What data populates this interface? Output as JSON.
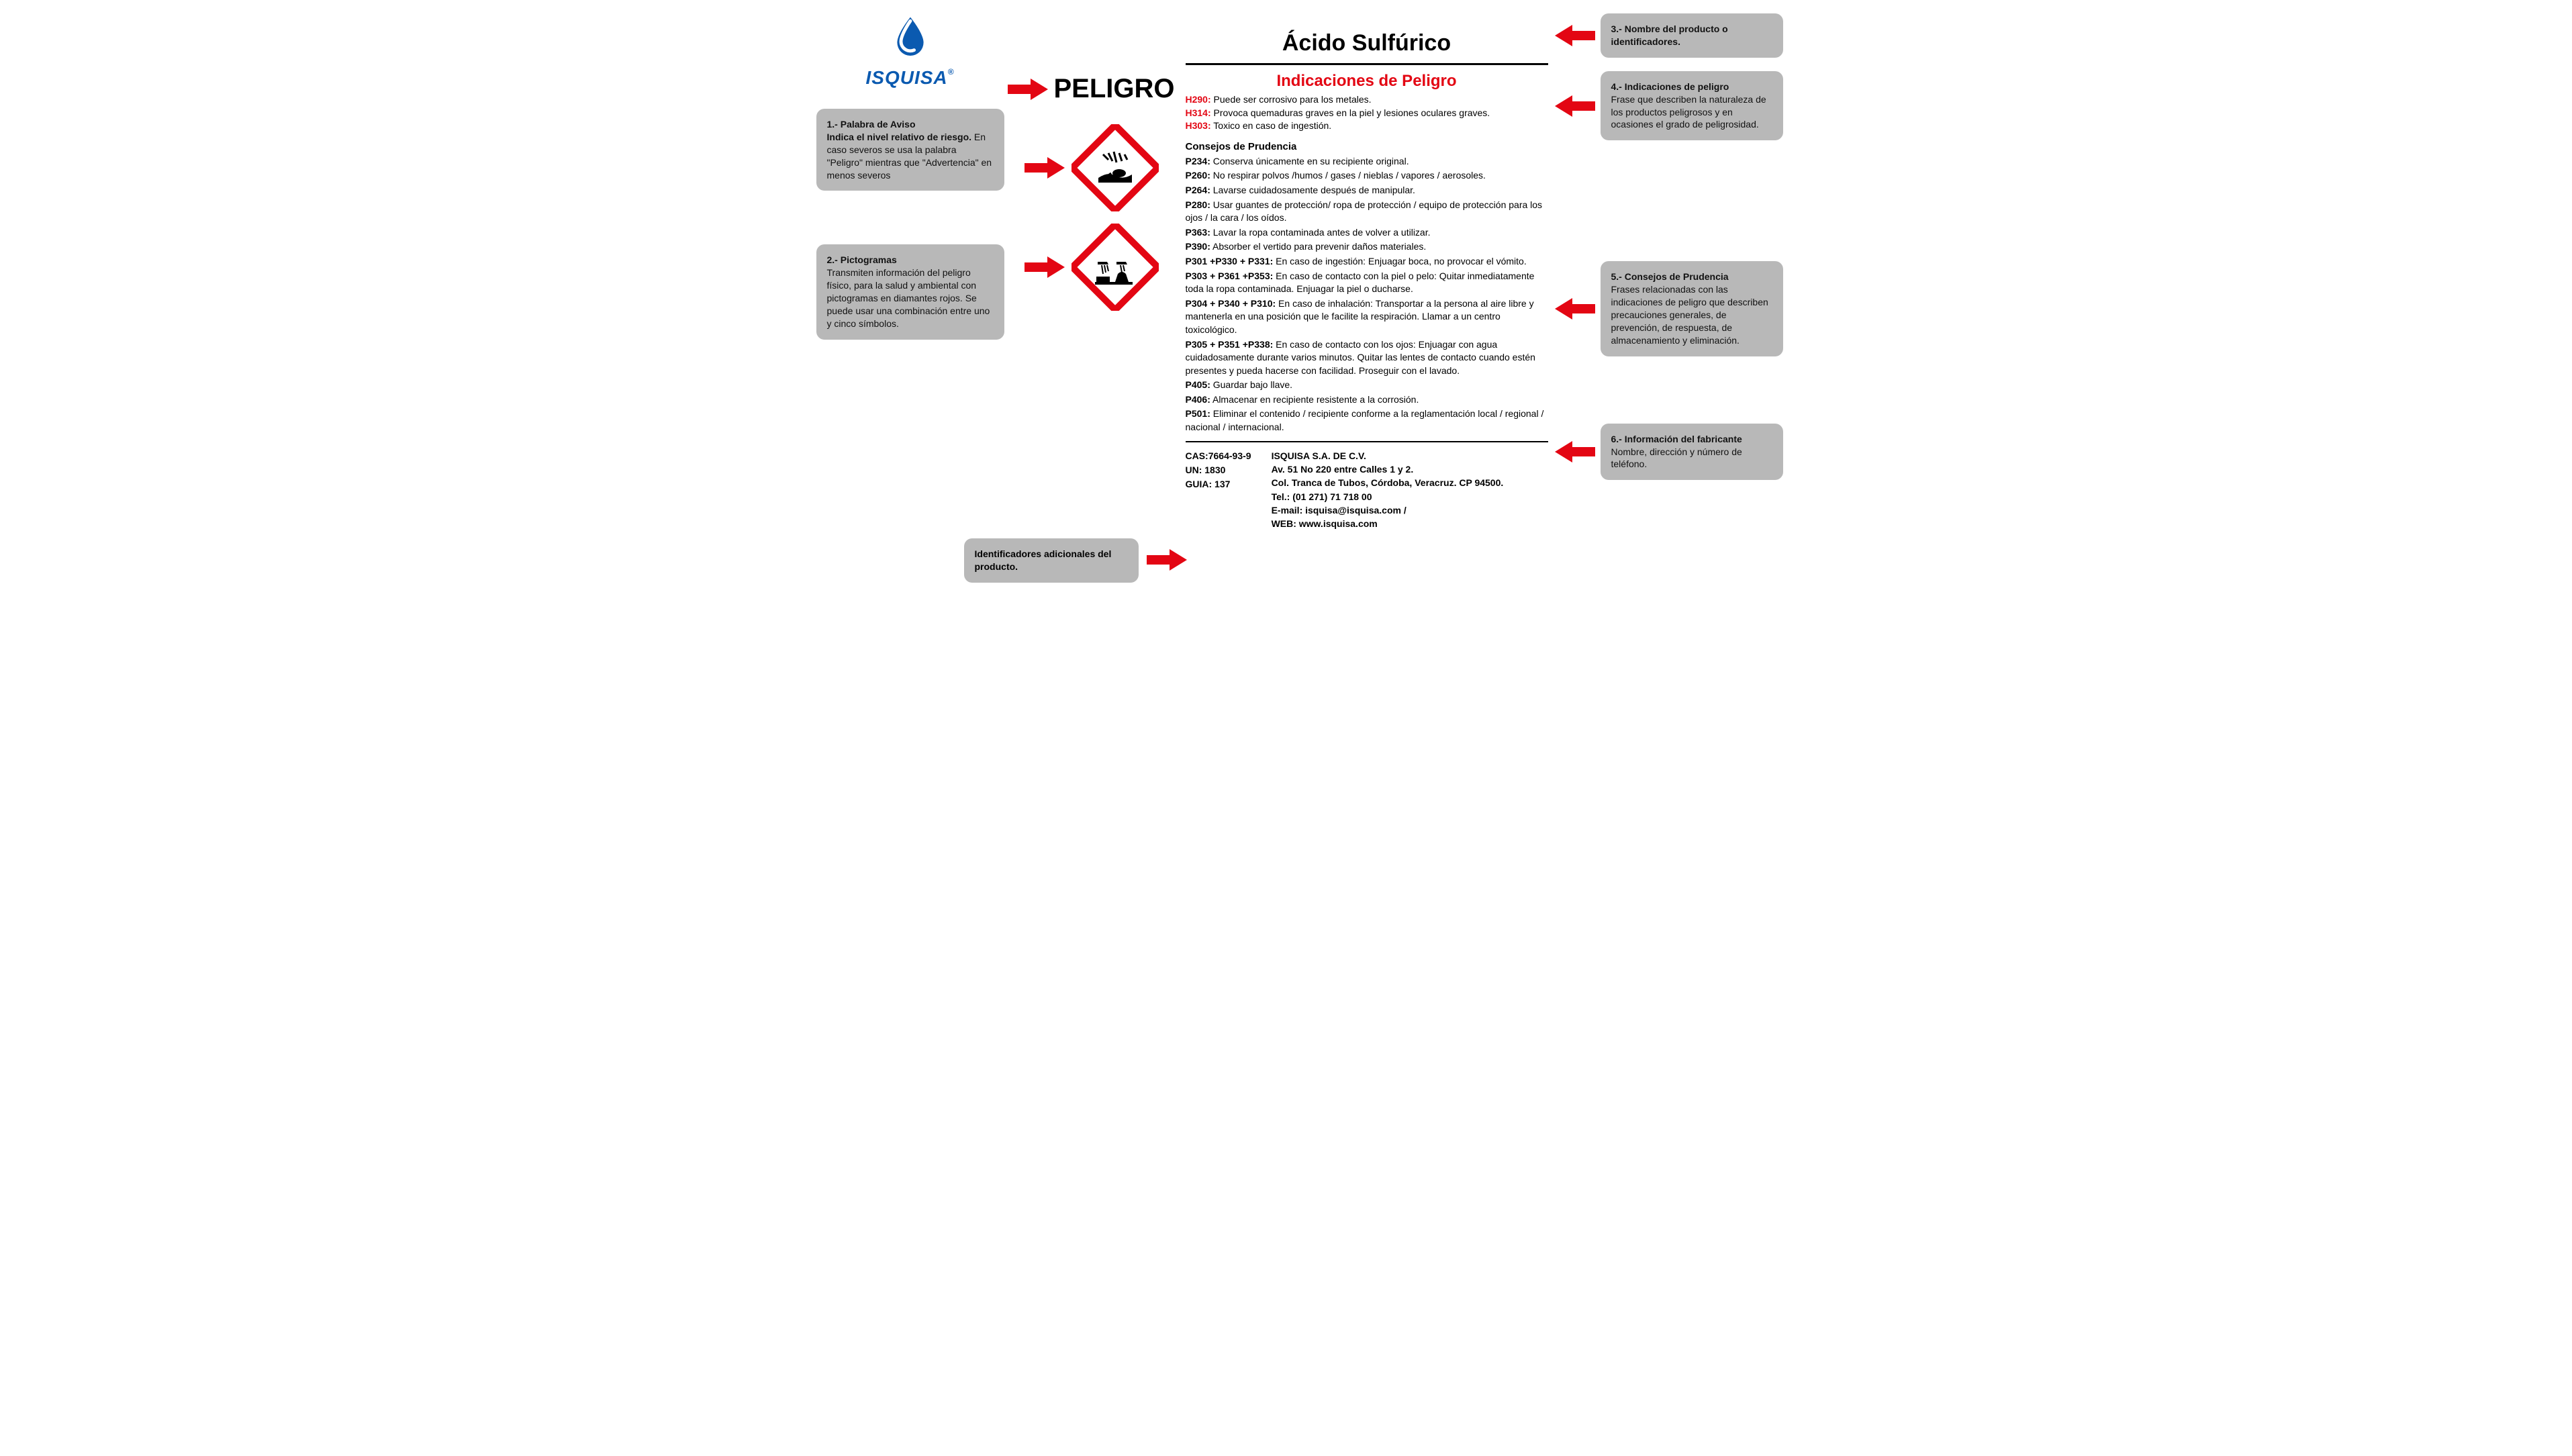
{
  "brand": {
    "name": "ISQUISA",
    "color": "#0b5ab0",
    "registered": "®"
  },
  "colors": {
    "arrow": "#e30613",
    "callout_bg": "#b8b8b8",
    "hcode": "#e30613",
    "text": "#111111",
    "diamond_border": "#e30613",
    "diamond_fill": "#ffffff"
  },
  "signal_word": "PELIGRO",
  "product_title": "Ácido Sulfúrico",
  "hazard_title": "Indicaciones de Peligro",
  "hazards": [
    {
      "code": "H290:",
      "text": " Puede ser corrosivo para los metales."
    },
    {
      "code": "H314:",
      "text": " Provoca quemaduras graves en la piel y lesiones oculares graves."
    },
    {
      "code": "H303:",
      "text": " Toxico en caso de ingestión."
    }
  ],
  "prudence_title": "Consejos de Prudencia",
  "prudence": [
    {
      "code": "P234:",
      "text": " Conserva únicamente en su recipiente original."
    },
    {
      "code": "P260:",
      "text": " No respirar polvos /humos / gases / nieblas / vapores / aerosoles."
    },
    {
      "code": "P264:",
      "text": " Lavarse cuidadosamente después de manipular."
    },
    {
      "code": "P280:",
      "text": " Usar guantes de protección/ ropa de protección / equipo de protección para los ojos / la cara / los oídos."
    },
    {
      "code": "P363:",
      "text": " Lavar la ropa contaminada antes de volver a utilizar."
    },
    {
      "code": "P390:",
      "text": " Absorber el vertido para prevenir daños materiales."
    },
    {
      "code": "P301 +P330 + P331:",
      "text": " En caso de ingestión: Enjuagar boca, no provocar el vómito."
    },
    {
      "code": "P303 + P361 +P353:",
      "text": " En caso de contacto con la piel o pelo: Quitar inmediatamente toda la ropa contaminada. Enjuagar la piel o ducharse."
    },
    {
      "code": "P304 + P340 + P310:",
      "text": " En caso de inhalación: Transportar a la persona al aire libre y mantenerla en una posición que le facilite la respiración. Llamar a un centro toxicológico."
    },
    {
      "code": "P305 + P351 +P338:",
      "text": " En caso de contacto con los ojos: Enjuagar con agua cuidadosamente durante varios minutos. Quitar las lentes de contacto cuando estén presentes y pueda hacerse con facilidad. Proseguir con el lavado."
    },
    {
      "code": "P405:",
      "text": " Guardar bajo llave."
    },
    {
      "code": "P406:",
      "text": " Almacenar en recipiente resistente a la corrosión."
    },
    {
      "code": "P501:",
      "text": " Eliminar el contenido / recipiente conforme a la reglamentación local / regional / nacional / internacional."
    }
  ],
  "identifiers": {
    "cas": "CAS:7664-93-9",
    "un": "UN: 1830",
    "guia": "GUIA: 137"
  },
  "manufacturer": {
    "name": "ISQUISA S.A. DE C.V.",
    "addr1": "Av. 51 No 220 entre Calles 1 y 2.",
    "addr2": "Col. Tranca de Tubos, Córdoba, Veracruz.  CP 94500.",
    "tel": "Tel.: (01 271) 71 718 00",
    "email": "E-mail: isquisa@isquisa.com /",
    "web": "WEB: www.isquisa.com"
  },
  "callouts": {
    "c1_title": "1.- Palabra de Aviso",
    "c1_body": "Indica el nivel relativo de riesgo. En caso severos se usa la palabra \"Peligro\" mientras que \"Advertencia\" en menos severos",
    "c2_title": "2.- Pictogramas",
    "c2_body": "Transmiten información del peligro físico, para la salud y ambiental con pictogramas en diamantes rojos. Se puede usar una combinación entre uno y cinco símbolos.",
    "c3_title": "3.- Nombre del producto o identificadores.",
    "c4_title": "4.- Indicaciones de peligro",
    "c4_body": "Frase que describen la naturaleza de los productos peligrosos y en ocasiones el grado de peligrosidad.",
    "c5_title": "5.- Consejos de Prudencia",
    "c5_body": "Frases relacionadas con las indicaciones de peligro que describen precauciones generales, de prevención, de respuesta, de almacenamiento y eliminación.",
    "c6_title": "6.- Información del fabricante",
    "c6_body": "Nombre, dirección y número de teléfono.",
    "ids_title": "Identificadores adicionales del producto."
  },
  "pictograms": [
    {
      "name": "ghs-environment-icon"
    },
    {
      "name": "ghs-corrosion-icon"
    }
  ]
}
